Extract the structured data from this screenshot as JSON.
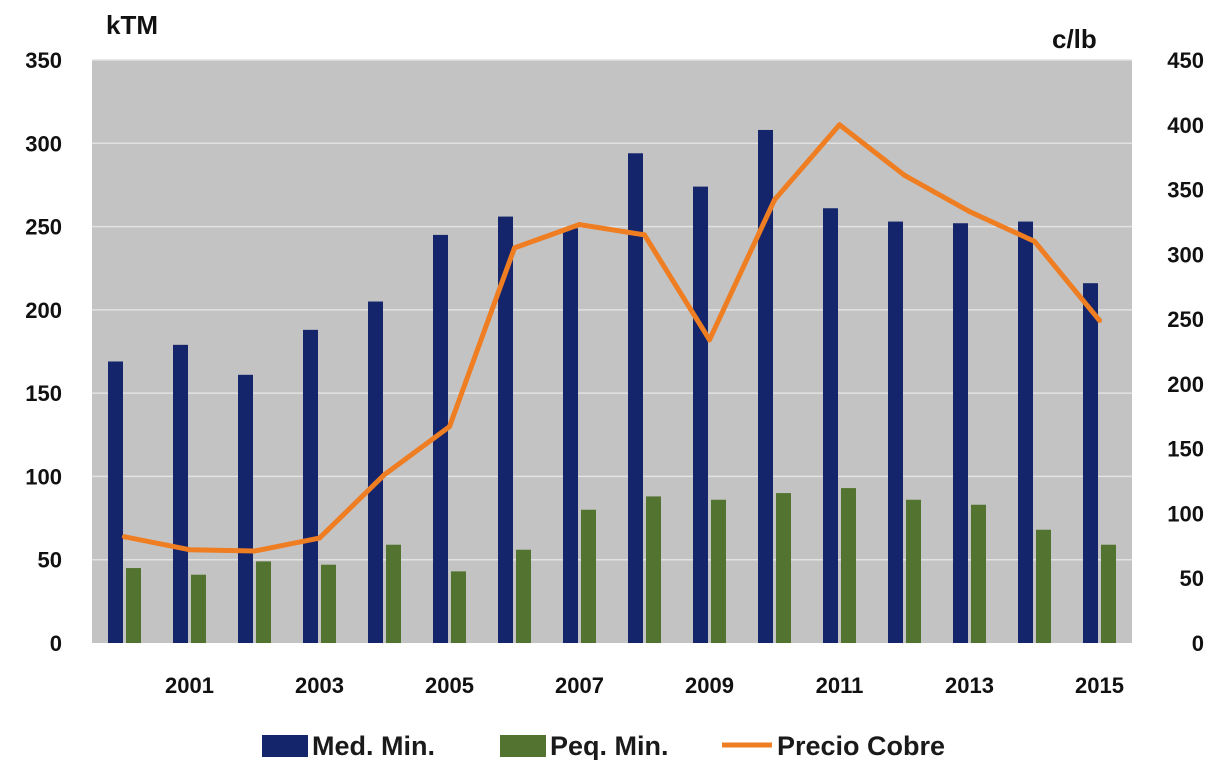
{
  "chart_data": {
    "type": "bar",
    "ylabel_left": "kTM",
    "ylabel_right": "c/lb",
    "ylim_left": [
      0,
      350
    ],
    "ylim_right": [
      0,
      450
    ],
    "yticks_left": [
      "0",
      "50",
      "100",
      "150",
      "200",
      "250",
      "300",
      "350"
    ],
    "yticks_right": [
      "0",
      "50",
      "100",
      "150",
      "200",
      "250",
      "300",
      "350",
      "400",
      "450"
    ],
    "categories": [
      "2000",
      "2001",
      "2002",
      "2003",
      "2004",
      "2005",
      "2006",
      "2007",
      "2008",
      "2009",
      "2010",
      "2011",
      "2012",
      "2013",
      "2014",
      "2015"
    ],
    "xtick_labels": [
      "",
      "2001",
      "",
      "2003",
      "",
      "2005",
      "",
      "2007",
      "",
      "2009",
      "",
      "2011",
      "",
      "2013",
      "",
      "2015"
    ],
    "grid": true,
    "legend_position": "bottom",
    "series": [
      {
        "name": "Med. Min.",
        "kind": "bar",
        "axis": "left",
        "color": "#14256b",
        "values": [
          169,
          179,
          161,
          188,
          205,
          245,
          256,
          249,
          294,
          274,
          308,
          261,
          253,
          252,
          253,
          216
        ]
      },
      {
        "name": "Peq. Min.",
        "kind": "bar",
        "axis": "left",
        "color": "#537330",
        "values": [
          45,
          41,
          49,
          47,
          59,
          43,
          56,
          80,
          88,
          86,
          90,
          93,
          86,
          83,
          68,
          59
        ]
      },
      {
        "name": "Precio Cobre",
        "kind": "line",
        "axis": "right",
        "color": "#ef7d22",
        "values": [
          82,
          72,
          71,
          81,
          130,
          167,
          305,
          323,
          315,
          234,
          342,
          400,
          361,
          333,
          310,
          249
        ]
      }
    ]
  }
}
